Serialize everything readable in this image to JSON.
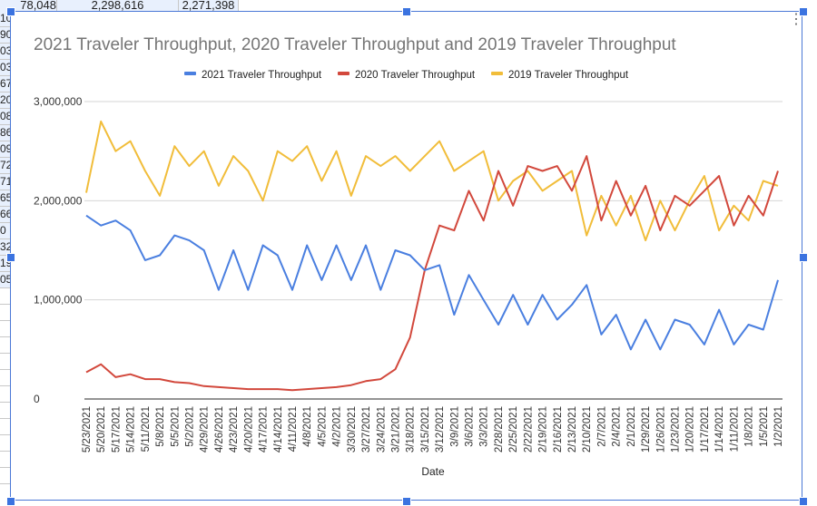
{
  "sheet": {
    "top_row_cells": [
      "78,048",
      "2,298,616",
      "2,271,398"
    ],
    "left_column_cells": [
      "10",
      "90",
      "03",
      "03",
      "67",
      "20",
      "08",
      "86",
      "09",
      "72",
      "71",
      "65",
      "66",
      "0",
      "32",
      "19",
      "05"
    ]
  },
  "chart_menu_icon": "more-vert-icon",
  "chart_data": {
    "type": "line",
    "title": "2021 Traveler Throughput, 2020 Traveler Throughput and 2019 Traveler Throughput",
    "xlabel": "Date",
    "ylabel": "",
    "ylim": [
      0,
      3000000
    ],
    "yticks": [
      0,
      1000000,
      2000000,
      3000000
    ],
    "ytick_labels": [
      "0",
      "1,000,000",
      "2,000,000",
      "3,000,000"
    ],
    "grid": true,
    "legend_position": "top",
    "categories": [
      "5/23/2021",
      "5/20/2021",
      "5/17/2021",
      "5/14/2021",
      "5/11/2021",
      "5/8/2021",
      "5/5/2021",
      "5/2/2021",
      "4/29/2021",
      "4/26/2021",
      "4/23/2021",
      "4/20/2021",
      "4/17/2021",
      "4/14/2021",
      "4/11/2021",
      "4/8/2021",
      "4/5/2021",
      "4/2/2021",
      "3/30/2021",
      "3/27/2021",
      "3/24/2021",
      "3/21/2021",
      "3/18/2021",
      "3/15/2021",
      "3/12/2021",
      "3/9/2021",
      "3/6/2021",
      "3/3/2021",
      "2/28/2021",
      "2/25/2021",
      "2/22/2021",
      "2/19/2021",
      "2/16/2021",
      "2/13/2021",
      "2/10/2021",
      "2/7/2021",
      "2/4/2021",
      "2/1/2021",
      "1/29/2021",
      "1/26/2021",
      "1/23/2021",
      "1/20/2021",
      "1/17/2021",
      "1/14/2021",
      "1/11/2021",
      "1/8/2021",
      "1/5/2021",
      "1/2/2021"
    ],
    "series": [
      {
        "name": "2021 Traveler Throughput",
        "color": "#4a7fe0",
        "values": [
          1850000,
          1750000,
          1800000,
          1700000,
          1400000,
          1450000,
          1650000,
          1600000,
          1500000,
          1100000,
          1500000,
          1100000,
          1550000,
          1450000,
          1100000,
          1550000,
          1200000,
          1550000,
          1200000,
          1550000,
          1100000,
          1500000,
          1450000,
          1300000,
          1350000,
          850000,
          1250000,
          1000000,
          750000,
          1050000,
          750000,
          1050000,
          800000,
          950000,
          1150000,
          650000,
          850000,
          500000,
          800000,
          500000,
          800000,
          750000,
          550000,
          900000,
          550000,
          750000,
          700000,
          1200000
        ]
      },
      {
        "name": "2020 Traveler Throughput",
        "color": "#d2483c",
        "values": [
          270000,
          350000,
          220000,
          250000,
          200000,
          200000,
          170000,
          160000,
          130000,
          120000,
          110000,
          100000,
          100000,
          100000,
          90000,
          100000,
          110000,
          120000,
          140000,
          180000,
          200000,
          300000,
          620000,
          1300000,
          1750000,
          1700000,
          2100000,
          1800000,
          2300000,
          1950000,
          2350000,
          2300000,
          2350000,
          2100000,
          2450000,
          1800000,
          2200000,
          1850000,
          2150000,
          1700000,
          2050000,
          1950000,
          2100000,
          2250000,
          1750000,
          2050000,
          1850000,
          2300000
        ]
      },
      {
        "name": "2019 Traveler Throughput",
        "color": "#f1bd3a",
        "values": [
          2080000,
          2800000,
          2500000,
          2600000,
          2300000,
          2050000,
          2550000,
          2350000,
          2500000,
          2150000,
          2450000,
          2300000,
          2000000,
          2500000,
          2400000,
          2550000,
          2200000,
          2500000,
          2050000,
          2450000,
          2350000,
          2450000,
          2300000,
          2450000,
          2600000,
          2300000,
          2400000,
          2500000,
          2000000,
          2200000,
          2300000,
          2100000,
          2200000,
          2300000,
          1650000,
          2050000,
          1750000,
          2050000,
          1600000,
          2000000,
          1700000,
          2000000,
          2250000,
          1700000,
          1950000,
          1800000,
          2200000,
          2150000
        ]
      }
    ]
  }
}
